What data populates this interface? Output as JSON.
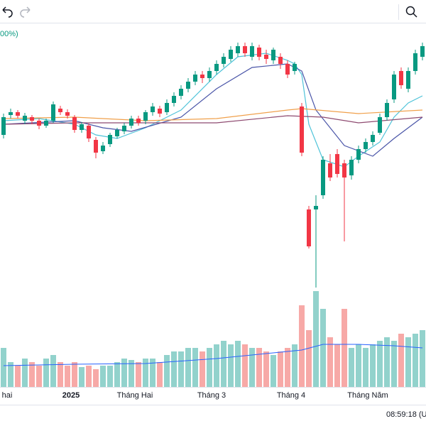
{
  "legend_fragment": "00%)",
  "clock": "08:59:18 (U",
  "chart_data": {
    "type": "candlestick",
    "ylim": [
      0,
      560
    ],
    "vlim": [
      0,
      150
    ],
    "up_color": "#089981",
    "down_color": "#f23645",
    "volume_up_color": "#92d2cc",
    "volume_down_color": "#f7a9a7",
    "open": [
      405,
      433,
      437,
      425,
      430,
      425,
      418,
      425,
      442,
      437,
      430,
      412,
      418,
      398,
      382,
      392,
      403,
      410,
      418,
      428,
      425,
      437,
      442,
      437,
      450,
      460,
      470,
      480,
      490,
      485,
      495,
      505,
      512,
      520,
      530,
      515,
      528,
      518,
      510,
      515,
      505,
      495,
      445,
      300,
      300,
      320,
      365,
      378,
      365,
      348,
      370,
      385,
      395,
      408,
      430,
      455,
      495,
      470,
      495,
      515
    ],
    "close": [
      430,
      437,
      432,
      432,
      425,
      418,
      425,
      448,
      437,
      432,
      412,
      420,
      400,
      380,
      390,
      405,
      412,
      418,
      428,
      422,
      437,
      445,
      435,
      450,
      460,
      470,
      480,
      490,
      485,
      495,
      505,
      515,
      525,
      530,
      520,
      530,
      515,
      512,
      525,
      505,
      490,
      505,
      380,
      248,
      305,
      370,
      345,
      350,
      345,
      370,
      385,
      395,
      405,
      430,
      450,
      490,
      475,
      495,
      520,
      530
    ],
    "high": [
      435,
      442,
      440,
      436,
      433,
      428,
      428,
      452,
      446,
      441,
      433,
      423,
      421,
      402,
      395,
      408,
      415,
      422,
      432,
      432,
      440,
      450,
      446,
      455,
      465,
      475,
      485,
      495,
      495,
      500,
      510,
      520,
      530,
      535,
      535,
      535,
      532,
      525,
      528,
      520,
      510,
      508,
      450,
      305,
      320,
      375,
      378,
      385,
      370,
      375,
      390,
      400,
      410,
      435,
      455,
      495,
      500,
      500,
      525,
      535
    ],
    "low": [
      400,
      428,
      428,
      420,
      420,
      413,
      415,
      422,
      433,
      428,
      408,
      408,
      395,
      372,
      378,
      388,
      400,
      406,
      414,
      418,
      420,
      432,
      430,
      433,
      445,
      455,
      465,
      475,
      478,
      480,
      490,
      500,
      508,
      515,
      515,
      510,
      510,
      505,
      505,
      498,
      485,
      490,
      375,
      245,
      190,
      315,
      340,
      345,
      255,
      342,
      365,
      380,
      390,
      405,
      425,
      450,
      470,
      465,
      490,
      510
    ],
    "volume": [
      55,
      35,
      30,
      40,
      35,
      30,
      40,
      45,
      35,
      30,
      35,
      28,
      30,
      25,
      30,
      30,
      35,
      40,
      38,
      35,
      40,
      40,
      35,
      45,
      50,
      50,
      55,
      55,
      50,
      55,
      60,
      65,
      60,
      65,
      60,
      55,
      55,
      50,
      45,
      50,
      55,
      60,
      115,
      80,
      135,
      110,
      70,
      60,
      110,
      55,
      60,
      55,
      60,
      65,
      70,
      65,
      75,
      70,
      75,
      80
    ],
    "lines": [
      {
        "color": "#4fc3d9",
        "x": [
          0,
          5,
          10,
          13,
          16,
          20,
          25,
          30,
          33,
          37,
          40,
          41,
          42,
          43,
          45,
          48,
          50,
          53,
          55,
          57,
          59
        ],
        "values": [
          425,
          428,
          420,
          405,
          400,
          415,
          440,
          490,
          515,
          520,
          510,
          505,
          490,
          420,
          370,
          360,
          375,
          395,
          430,
          450,
          460
        ]
      },
      {
        "color": "#4a55a8",
        "x": [
          0,
          10,
          14,
          18,
          25,
          30,
          35,
          40,
          42,
          44,
          48,
          52,
          55,
          59
        ],
        "values": [
          420,
          425,
          415,
          410,
          430,
          470,
          500,
          505,
          495,
          440,
          390,
          375,
          400,
          430
        ]
      },
      {
        "color": "#f0a04b",
        "x": [
          0,
          10,
          20,
          30,
          40,
          42,
          50,
          59
        ],
        "values": [
          428,
          430,
          425,
          428,
          440,
          442,
          435,
          440
        ]
      },
      {
        "color": "#8e4a70",
        "x": [
          0,
          10,
          20,
          30,
          40,
          45,
          50,
          59
        ],
        "values": [
          420,
          422,
          422,
          422,
          432,
          430,
          422,
          430
        ]
      }
    ],
    "volume_line": {
      "color": "#2962ff",
      "x": [
        0,
        10,
        20,
        30,
        40,
        42,
        45,
        50,
        55,
        59
      ],
      "values": [
        30,
        32,
        33,
        40,
        50,
        52,
        60,
        60,
        58,
        55
      ]
    },
    "time_labels": [
      {
        "value": 0.5,
        "label": "hai"
      },
      {
        "value": 9.5,
        "label": "2025"
      },
      {
        "value": 18.5,
        "label": "Tháng Hai"
      },
      {
        "value": 29.3,
        "label": "Tháng 3"
      },
      {
        "value": 40.5,
        "label": "Tháng 4"
      },
      {
        "value": 51.3,
        "label": "Tháng Năm"
      }
    ]
  }
}
